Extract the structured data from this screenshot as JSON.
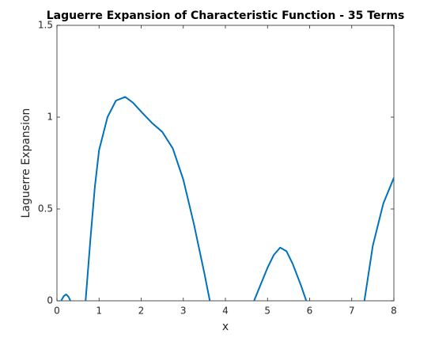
{
  "chart_data": {
    "type": "line",
    "title": "Laguerre Expansion of Characteristic Function - 35 Terms",
    "x_label": "x",
    "y_label": "Laguerre Expansion",
    "x": [
      0.1,
      0.16,
      0.22,
      0.28,
      0.32,
      0.5,
      0.68,
      0.8,
      0.9,
      1.0,
      1.2,
      1.4,
      1.62,
      1.8,
      2.0,
      2.25,
      2.5,
      2.75,
      3.0,
      3.25,
      3.5,
      3.63,
      4.2,
      4.68,
      5.0,
      5.15,
      5.3,
      5.45,
      5.6,
      5.8,
      5.92,
      6.6,
      7.3,
      7.5,
      7.75,
      8.0
    ],
    "series": [
      {
        "name": "Laguerre Expansion",
        "color": "#0072bd",
        "values": [
          0,
          0.025,
          0.035,
          0.02,
          0,
          null,
          0,
          0.35,
          0.62,
          0.82,
          1.0,
          1.09,
          1.11,
          1.08,
          1.03,
          0.97,
          0.92,
          0.83,
          0.66,
          0.42,
          0.15,
          0,
          null,
          0,
          0.18,
          0.25,
          0.29,
          0.27,
          0.2,
          0.08,
          0,
          null,
          0,
          0.3,
          0.53,
          0.67
        ]
      }
    ],
    "xlim": [
      0,
      8
    ],
    "xticks": [
      0,
      1,
      2,
      3,
      4,
      5,
      6,
      7,
      8
    ],
    "ylim": [
      0,
      1.5
    ],
    "yticks": [
      0,
      0.5,
      1,
      1.5
    ],
    "grid": false
  }
}
